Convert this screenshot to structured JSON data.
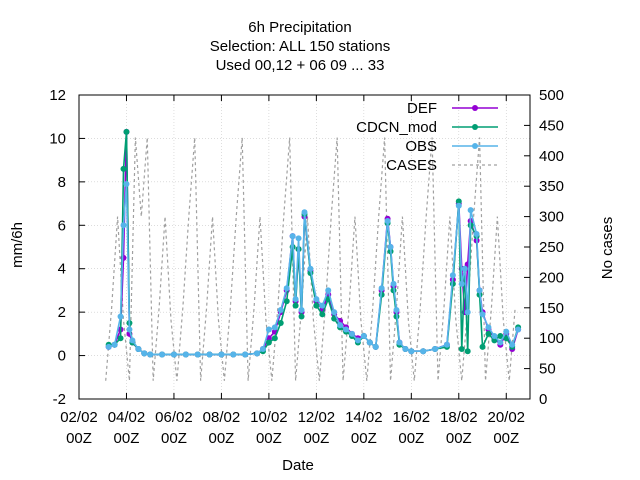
{
  "title_lines": [
    "6h Precipitation",
    "Selection: ALL    150 stations",
    "Used  00,12  + 06 09 ... 33"
  ],
  "xlabel": "Date",
  "ylabel_left": "mm/6h",
  "ylabel_right": "No cases",
  "legend": [
    {
      "label": "DEF",
      "color": "#9400d3",
      "style": "line-point"
    },
    {
      "label": "CDCN_mod",
      "color": "#009e73",
      "style": "line-point"
    },
    {
      "label": "OBS",
      "color": "#56b4e9",
      "style": "line-point"
    },
    {
      "label": "CASES",
      "color": "#a0a0a0",
      "style": "dashed"
    }
  ],
  "chart_data": {
    "type": "line",
    "title": "6h Precipitation\nSelection: ALL    150 stations\nUsed  00,12  + 06 09 ... 33",
    "xlabel": "Date",
    "ylabel": "mm/6h",
    "y2label": "No cases",
    "xlim": [
      0,
      19
    ],
    "ylim": [
      -2,
      12
    ],
    "y2lim": [
      0,
      500
    ],
    "x_ticks": [
      0,
      2,
      4,
      6,
      8,
      10,
      12,
      14,
      16,
      18
    ],
    "x_tick_labels": [
      [
        "02/02",
        "00Z"
      ],
      [
        "04/02",
        "00Z"
      ],
      [
        "06/02",
        "00Z"
      ],
      [
        "08/02",
        "00Z"
      ],
      [
        "10/02",
        "00Z"
      ],
      [
        "12/02",
        "00Z"
      ],
      [
        "14/02",
        "00Z"
      ],
      [
        "16/02",
        "00Z"
      ],
      [
        "18/02",
        "00Z"
      ],
      [
        "20/02",
        "00Z"
      ]
    ],
    "y_ticks": [
      -2,
      0,
      2,
      4,
      6,
      8,
      10,
      12
    ],
    "y2_ticks": [
      0,
      50,
      100,
      150,
      200,
      250,
      300,
      350,
      400,
      450,
      500
    ],
    "grid": true,
    "legend_position": "top-right",
    "x_unit": "days since 02/02 00Z",
    "series": [
      {
        "name": "DEF",
        "color": "#9400d3",
        "x": [
          1.25,
          1.5,
          1.75,
          1.875,
          2.0,
          2.125,
          2.25,
          2.5,
          2.75,
          3.0,
          3.5,
          4.0,
          4.5,
          5.0,
          5.5,
          6.0,
          6.5,
          7.0,
          7.5,
          7.75,
          8.0,
          8.25,
          8.5,
          8.75,
          9.0,
          9.125,
          9.25,
          9.375,
          9.5,
          9.75,
          10.0,
          10.25,
          10.5,
          10.75,
          11.0,
          11.25,
          11.5,
          11.75,
          12.0,
          12.25,
          12.5,
          12.75,
          13.0,
          13.125,
          13.25,
          13.375,
          13.5,
          13.75,
          14.0,
          14.5,
          15.0,
          15.5,
          15.75,
          16.0,
          16.125,
          16.25,
          16.375,
          16.5,
          16.75,
          16.875,
          17.0,
          17.25,
          17.5,
          17.75,
          18.0,
          18.25,
          18.5
        ],
        "y": [
          0.4,
          0.5,
          1.2,
          4.5,
          10.3,
          1.0,
          0.6,
          0.3,
          0.1,
          0.05,
          0.05,
          0.05,
          0.05,
          0.05,
          0.05,
          0.05,
          0.05,
          0.05,
          0.1,
          0.3,
          0.8,
          1.1,
          2.0,
          3.0,
          5.5,
          2.5,
          4.9,
          2.0,
          6.4,
          3.9,
          2.5,
          2.1,
          2.8,
          1.9,
          1.6,
          1.3,
          1.0,
          0.8,
          0.9,
          0.6,
          0.4,
          3.0,
          6.3,
          5.0,
          3.2,
          2.0,
          0.6,
          0.3,
          0.2,
          0.2,
          0.3,
          0.5,
          3.5,
          7.0,
          4.0,
          2.0,
          4.2,
          6.2,
          5.3,
          3.0,
          2.0,
          1.2,
          0.8,
          0.5,
          1.0,
          0.3,
          1.2
        ]
      },
      {
        "name": "CDCN_mod",
        "color": "#009e73",
        "x": [
          1.25,
          1.5,
          1.75,
          1.875,
          2.0,
          2.125,
          2.25,
          2.5,
          2.75,
          3.0,
          3.5,
          4.0,
          4.5,
          5.0,
          5.5,
          6.0,
          6.5,
          7.0,
          7.5,
          7.75,
          8.0,
          8.25,
          8.5,
          8.75,
          9.0,
          9.125,
          9.25,
          9.375,
          9.5,
          9.75,
          10.0,
          10.25,
          10.5,
          10.75,
          11.0,
          11.25,
          11.5,
          11.75,
          12.0,
          12.25,
          12.5,
          12.75,
          13.0,
          13.125,
          13.25,
          13.375,
          13.5,
          13.75,
          14.0,
          14.5,
          15.0,
          15.5,
          15.75,
          16.0,
          16.125,
          16.25,
          16.375,
          16.5,
          16.75,
          16.875,
          17.0,
          17.25,
          17.5,
          17.75,
          18.0,
          18.25,
          18.5
        ],
        "y": [
          0.5,
          0.5,
          0.8,
          8.6,
          10.3,
          1.5,
          0.6,
          0.3,
          0.1,
          0.05,
          0.05,
          0.05,
          0.05,
          0.05,
          0.05,
          0.05,
          0.05,
          0.05,
          0.1,
          0.2,
          0.6,
          0.8,
          1.5,
          2.5,
          5.0,
          2.3,
          4.9,
          1.8,
          6.5,
          3.8,
          2.3,
          1.9,
          2.6,
          1.7,
          1.3,
          1.1,
          0.9,
          0.6,
          0.9,
          0.6,
          0.4,
          2.8,
          6.1,
          4.8,
          3.0,
          1.8,
          0.5,
          0.3,
          0.2,
          0.2,
          0.3,
          0.4,
          3.3,
          7.1,
          0.3,
          4.0,
          0.2,
          6.0,
          5.5,
          2.8,
          0.4,
          1.0,
          0.7,
          0.9,
          0.8,
          0.4,
          1.3
        ]
      },
      {
        "name": "OBS",
        "color": "#56b4e9",
        "x": [
          1.25,
          1.5,
          1.75,
          1.875,
          2.0,
          2.125,
          2.25,
          2.5,
          2.75,
          3.0,
          3.5,
          4.0,
          4.5,
          5.0,
          5.5,
          6.0,
          6.5,
          7.0,
          7.5,
          7.75,
          8.0,
          8.25,
          8.5,
          8.75,
          9.0,
          9.125,
          9.25,
          9.375,
          9.5,
          9.75,
          10.0,
          10.25,
          10.5,
          10.75,
          11.0,
          11.25,
          11.5,
          11.75,
          12.0,
          12.25,
          12.5,
          12.75,
          13.0,
          13.125,
          13.25,
          13.375,
          13.5,
          13.75,
          14.0,
          14.5,
          15.0,
          15.5,
          15.75,
          16.0,
          16.125,
          16.25,
          16.375,
          16.5,
          16.75,
          16.875,
          17.0,
          17.25,
          17.5,
          17.75,
          18.0,
          18.25,
          18.5
        ],
        "y": [
          0.4,
          0.5,
          1.8,
          6.0,
          7.9,
          1.2,
          0.7,
          0.3,
          0.1,
          0.05,
          0.05,
          0.05,
          0.05,
          0.05,
          0.05,
          0.05,
          0.05,
          0.05,
          0.1,
          0.3,
          1.2,
          1.3,
          2.1,
          3.1,
          5.5,
          2.6,
          5.4,
          2.1,
          6.6,
          4.0,
          2.6,
          2.3,
          3.0,
          2.0,
          1.4,
          1.2,
          1.0,
          0.7,
          0.9,
          0.6,
          0.4,
          3.1,
          6.2,
          5.0,
          3.3,
          2.1,
          0.6,
          0.3,
          0.2,
          0.2,
          0.3,
          0.5,
          3.7,
          6.9,
          3.3,
          4.0,
          2.0,
          6.7,
          5.6,
          3.0,
          1.9,
          1.3,
          0.9,
          0.6,
          1.1,
          0.5,
          1.2
        ]
      },
      {
        "name": "CASES",
        "color": "#a0a0a0",
        "axis": "right",
        "period": 0.25,
        "x_start": 1.125,
        "x_end": 18.5,
        "pattern": [
          30,
          150,
          300,
          130
        ],
        "peaks": [
          {
            "x": 2.375,
            "y": 430
          },
          {
            "x": 2.875,
            "y": 430
          },
          {
            "x": 4.875,
            "y": 430
          },
          {
            "x": 6.875,
            "y": 430
          },
          {
            "x": 8.875,
            "y": 430
          },
          {
            "x": 10.875,
            "y": 430
          },
          {
            "x": 12.875,
            "y": 430
          },
          {
            "x": 14.875,
            "y": 430
          },
          {
            "x": 16.875,
            "y": 430
          }
        ]
      }
    ]
  }
}
